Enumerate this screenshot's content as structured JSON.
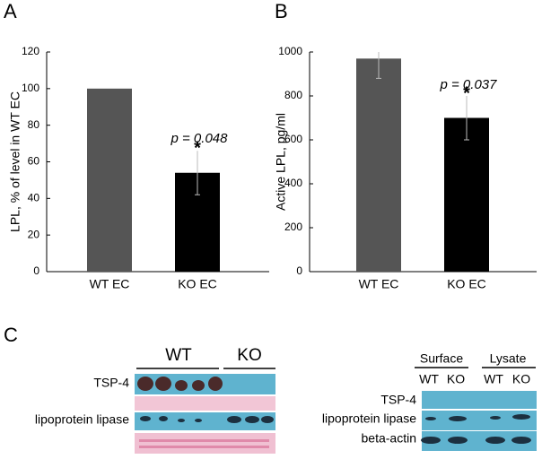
{
  "chart_data": [
    {
      "type": "bar",
      "panel": "A",
      "ylabel": "LPL, % of level in WT EC",
      "categories": [
        "WT EC",
        "KO EC"
      ],
      "values": [
        100,
        54
      ],
      "errors": [
        null,
        12
      ],
      "colors": [
        "#555555",
        "#000000"
      ],
      "ylim": [
        0,
        120
      ],
      "yticks": [
        0,
        20,
        40,
        60,
        80,
        100,
        120
      ],
      "annotation": "p = 0.048",
      "significance": "*"
    },
    {
      "type": "bar",
      "panel": "B",
      "ylabel": "Active LPL, pg/ml",
      "categories": [
        "WT EC",
        "KO EC"
      ],
      "values": [
        970,
        700
      ],
      "errors": [
        90,
        100
      ],
      "colors": [
        "#555555",
        "#000000"
      ],
      "ylim": [
        0,
        1000
      ],
      "yticks": [
        0,
        200,
        400,
        600,
        800,
        1000
      ],
      "annotation": "p = 0.037",
      "significance": "*"
    }
  ],
  "blots": {
    "panel": "C",
    "left": {
      "groups": [
        "WT",
        "KO"
      ],
      "rows": [
        "TSP-4",
        "lipoprotein lipase"
      ]
    },
    "right": {
      "groups": [
        "Surface",
        "Lysate"
      ],
      "lanes": [
        "WT",
        "KO",
        "WT",
        "KO"
      ],
      "rows": [
        "TSP-4",
        "lipoprotein lipase",
        "beta-actin"
      ]
    }
  }
}
